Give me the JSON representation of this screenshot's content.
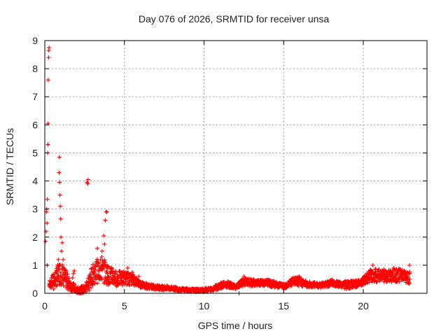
{
  "chart_data": {
    "type": "scatter",
    "title": "Day 076 of 2026, SRMTID for receiver unsa",
    "xlabel": "GPS time / hours",
    "ylabel": "SRMTID / TECUs",
    "xlim": [
      0,
      24
    ],
    "ylim": [
      0,
      9
    ],
    "x_ticks": [
      0,
      5,
      10,
      15,
      20
    ],
    "x_tick_labels": [
      "0",
      "5",
      "10",
      "15",
      "20"
    ],
    "y_ticks": [
      0,
      1,
      2,
      3,
      4,
      5,
      6,
      7,
      8,
      9
    ],
    "y_tick_labels": [
      "0",
      "1",
      "2",
      "3",
      "4",
      "5",
      "6",
      "7",
      "8",
      "9"
    ],
    "grid": true,
    "marker": "+",
    "color": "#ff0000",
    "series": [
      {
        "name": "SRMTID",
        "points": [
          [
            0.05,
            1.85
          ],
          [
            0.08,
            2.2
          ],
          [
            0.1,
            2.9
          ],
          [
            0.12,
            3.0
          ],
          [
            0.14,
            2.5
          ],
          [
            0.15,
            1.0
          ],
          [
            0.16,
            3.35
          ],
          [
            0.18,
            5.0
          ],
          [
            0.2,
            5.3
          ],
          [
            0.2,
            6.05
          ],
          [
            0.22,
            7.6
          ],
          [
            0.24,
            8.4
          ],
          [
            0.25,
            8.65
          ],
          [
            0.27,
            8.75
          ],
          [
            0.3,
            0.3
          ],
          [
            0.35,
            0.2
          ],
          [
            0.4,
            0.4
          ],
          [
            0.45,
            0.25
          ],
          [
            0.5,
            0.35
          ],
          [
            0.55,
            0.15
          ],
          [
            0.6,
            0.3
          ],
          [
            0.7,
            0.25
          ],
          [
            0.75,
            0.5
          ],
          [
            0.8,
            0.45
          ],
          [
            0.85,
            1.2
          ],
          [
            0.88,
            1.0
          ],
          [
            0.9,
            4.3
          ],
          [
            0.92,
            4.85
          ],
          [
            0.93,
            3.95
          ],
          [
            0.95,
            3.5
          ],
          [
            0.97,
            3.1
          ],
          [
            1.0,
            2.65
          ],
          [
            1.02,
            2.0
          ],
          [
            1.05,
            1.5
          ],
          [
            1.1,
            1.8
          ],
          [
            1.15,
            1.2
          ],
          [
            1.2,
            0.9
          ],
          [
            1.25,
            0.6
          ],
          [
            1.3,
            0.45
          ],
          [
            1.35,
            0.25
          ],
          [
            1.45,
            0.2
          ],
          [
            1.55,
            0.3
          ],
          [
            1.65,
            0.15
          ],
          [
            1.75,
            0.55
          ],
          [
            1.8,
            0.7
          ],
          [
            1.85,
            0.8
          ],
          [
            1.9,
            0.3
          ],
          [
            2.0,
            0.05
          ],
          [
            2.2,
            0.0
          ],
          [
            2.4,
            0.02
          ],
          [
            2.6,
            0.05
          ],
          [
            2.65,
            3.95
          ],
          [
            2.7,
            3.9
          ],
          [
            2.72,
            4.05
          ],
          [
            2.8,
            0.1
          ],
          [
            2.9,
            0.2
          ],
          [
            3.0,
            0.5
          ],
          [
            3.1,
            0.8
          ],
          [
            3.2,
            1.0
          ],
          [
            3.3,
            1.6
          ],
          [
            3.35,
            0.8
          ],
          [
            3.4,
            0.6
          ],
          [
            3.5,
            1.2
          ],
          [
            3.6,
            1.5
          ],
          [
            3.7,
            2.05
          ],
          [
            3.75,
            1.75
          ],
          [
            3.8,
            2.6
          ],
          [
            3.85,
            2.9
          ],
          [
            3.9,
            2.9
          ],
          [
            3.95,
            0.9
          ],
          [
            4.0,
            0.6
          ],
          [
            4.1,
            0.4
          ],
          [
            4.2,
            0.5
          ],
          [
            4.3,
            0.8
          ],
          [
            4.4,
            0.6
          ],
          [
            4.5,
            0.45
          ],
          [
            4.6,
            0.3
          ],
          [
            4.75,
            0.55
          ],
          [
            4.9,
            0.4
          ],
          [
            5.0,
            0.7
          ],
          [
            5.1,
            0.5
          ],
          [
            5.2,
            0.9
          ],
          [
            5.3,
            0.3
          ],
          [
            5.4,
            0.6
          ],
          [
            5.5,
            0.75
          ],
          [
            5.6,
            0.45
          ],
          [
            5.75,
            0.35
          ],
          [
            5.9,
            0.6
          ],
          [
            6.05,
            0.4
          ],
          [
            6.2,
            0.25
          ],
          [
            6.4,
            0.3
          ],
          [
            6.6,
            0.2
          ],
          [
            6.8,
            0.25
          ],
          [
            7.0,
            0.2
          ],
          [
            7.2,
            0.25
          ],
          [
            7.4,
            0.2
          ],
          [
            7.6,
            0.18
          ],
          [
            7.8,
            0.2
          ],
          [
            8.0,
            0.18
          ],
          [
            8.2,
            0.15
          ],
          [
            8.4,
            0.1
          ],
          [
            8.6,
            0.12
          ],
          [
            8.8,
            0.15
          ],
          [
            9.0,
            0.1
          ],
          [
            9.2,
            0.08
          ],
          [
            9.4,
            0.1
          ],
          [
            9.6,
            0.08
          ],
          [
            9.8,
            0.1
          ],
          [
            10.0,
            0.12
          ],
          [
            10.2,
            0.08
          ],
          [
            10.4,
            0.1
          ],
          [
            10.6,
            0.15
          ],
          [
            10.8,
            0.2
          ],
          [
            11.0,
            0.3
          ],
          [
            11.2,
            0.4
          ],
          [
            11.4,
            0.35
          ],
          [
            11.6,
            0.3
          ],
          [
            11.8,
            0.2
          ],
          [
            12.0,
            0.2
          ],
          [
            12.2,
            0.0
          ],
          [
            12.3,
            0.3
          ],
          [
            12.4,
            0.5
          ],
          [
            12.5,
            0.6
          ],
          [
            12.7,
            0.4
          ],
          [
            12.9,
            0.35
          ],
          [
            13.1,
            0.45
          ],
          [
            13.3,
            0.35
          ],
          [
            13.5,
            0.4
          ],
          [
            13.7,
            0.3
          ],
          [
            13.9,
            0.35
          ],
          [
            14.1,
            0.45
          ],
          [
            14.3,
            0.3
          ],
          [
            14.5,
            0.25
          ],
          [
            14.7,
            0.35
          ],
          [
            14.9,
            0.3
          ],
          [
            15.1,
            0.2
          ],
          [
            15.3,
            0.25
          ],
          [
            15.5,
            0.4
          ],
          [
            15.7,
            0.55
          ],
          [
            15.9,
            0.45
          ],
          [
            16.1,
            0.5
          ],
          [
            16.3,
            0.35
          ],
          [
            16.5,
            0.3
          ],
          [
            16.7,
            0.25
          ],
          [
            16.9,
            0.3
          ],
          [
            17.1,
            0.35
          ],
          [
            17.3,
            0.25
          ],
          [
            17.5,
            0.3
          ],
          [
            17.7,
            0.35
          ],
          [
            17.9,
            0.45
          ],
          [
            18.1,
            0.4
          ],
          [
            18.3,
            0.3
          ],
          [
            18.5,
            0.25
          ],
          [
            18.7,
            0.3
          ],
          [
            18.9,
            0.4
          ],
          [
            19.1,
            0.2
          ],
          [
            19.3,
            0.25
          ],
          [
            19.5,
            0.35
          ],
          [
            19.7,
            0.3
          ],
          [
            19.9,
            0.45
          ],
          [
            20.1,
            0.5
          ],
          [
            20.3,
            0.65
          ],
          [
            20.5,
            0.8
          ],
          [
            20.6,
            1.0
          ],
          [
            20.7,
            0.55
          ],
          [
            20.9,
            0.7
          ],
          [
            21.1,
            0.6
          ],
          [
            21.3,
            0.85
          ],
          [
            21.5,
            0.5
          ],
          [
            21.7,
            0.6
          ],
          [
            21.9,
            0.9
          ],
          [
            22.1,
            0.7
          ],
          [
            22.3,
            0.55
          ],
          [
            22.5,
            0.75
          ],
          [
            22.7,
            0.6
          ],
          [
            22.8,
            0.5
          ],
          [
            22.9,
            1.0
          ]
        ],
        "band": [
          [
            0.3,
            0.2,
            0.45
          ],
          [
            1.0,
            0.3,
            1.2
          ],
          [
            1.5,
            0.1,
            0.6
          ],
          [
            2.0,
            0.0,
            0.2
          ],
          [
            2.5,
            0.0,
            0.3
          ],
          [
            3.0,
            0.3,
            1.0
          ],
          [
            3.5,
            0.4,
            1.4
          ],
          [
            4.0,
            0.3,
            1.0
          ],
          [
            4.5,
            0.25,
            0.8
          ],
          [
            5.0,
            0.3,
            0.8
          ],
          [
            5.5,
            0.3,
            0.7
          ],
          [
            6.0,
            0.2,
            0.45
          ],
          [
            6.5,
            0.15,
            0.35
          ],
          [
            7.0,
            0.12,
            0.3
          ],
          [
            7.5,
            0.12,
            0.28
          ],
          [
            8.0,
            0.1,
            0.25
          ],
          [
            8.5,
            0.08,
            0.2
          ],
          [
            9.0,
            0.06,
            0.18
          ],
          [
            9.5,
            0.05,
            0.16
          ],
          [
            10.0,
            0.05,
            0.18
          ],
          [
            10.5,
            0.08,
            0.22
          ],
          [
            11.0,
            0.15,
            0.4
          ],
          [
            11.5,
            0.2,
            0.42
          ],
          [
            12.0,
            0.15,
            0.3
          ],
          [
            12.5,
            0.25,
            0.55
          ],
          [
            13.0,
            0.25,
            0.5
          ],
          [
            13.5,
            0.25,
            0.48
          ],
          [
            14.0,
            0.25,
            0.5
          ],
          [
            14.5,
            0.2,
            0.42
          ],
          [
            15.0,
            0.15,
            0.35
          ],
          [
            15.5,
            0.25,
            0.55
          ],
          [
            16.0,
            0.25,
            0.6
          ],
          [
            16.5,
            0.2,
            0.42
          ],
          [
            17.0,
            0.2,
            0.4
          ],
          [
            17.5,
            0.2,
            0.4
          ],
          [
            18.0,
            0.25,
            0.5
          ],
          [
            18.5,
            0.2,
            0.42
          ],
          [
            19.0,
            0.15,
            0.45
          ],
          [
            19.5,
            0.2,
            0.45
          ],
          [
            20.0,
            0.3,
            0.6
          ],
          [
            20.5,
            0.4,
            0.9
          ],
          [
            21.0,
            0.4,
            0.85
          ],
          [
            21.5,
            0.4,
            0.8
          ],
          [
            22.0,
            0.4,
            0.9
          ],
          [
            22.5,
            0.4,
            0.85
          ],
          [
            22.95,
            0.3,
            0.8
          ]
        ]
      }
    ]
  }
}
